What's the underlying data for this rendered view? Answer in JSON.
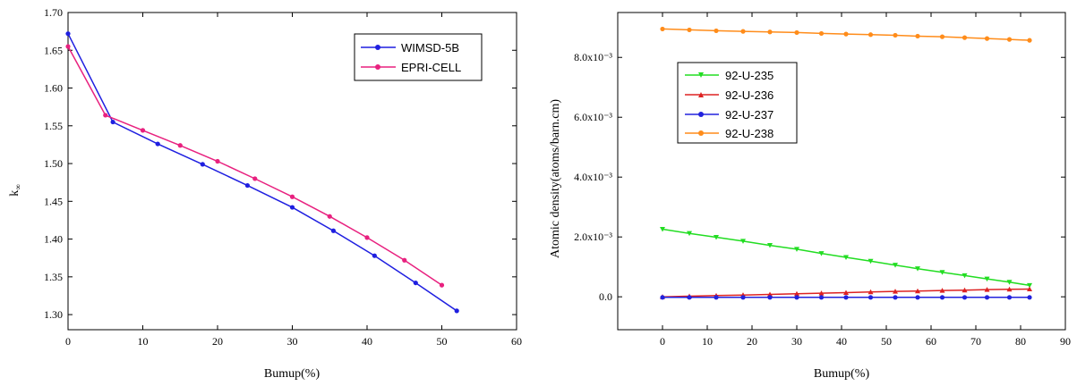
{
  "chart_data": [
    {
      "type": "line",
      "title": "",
      "xlabel": "Bumup(%)",
      "ylabel": "k",
      "ylabel_sub": "∞",
      "xlim": [
        0,
        60
      ],
      "ylim": [
        1.28,
        1.7
      ],
      "x_ticks": [
        "0",
        "10",
        "20",
        "30",
        "40",
        "50",
        "60"
      ],
      "y_ticks": [
        "1.30",
        "1.35",
        "1.40",
        "1.45",
        "1.50",
        "1.55",
        "1.60",
        "1.65",
        "1.70"
      ],
      "grid": false,
      "legend": "top-right",
      "series": [
        {
          "name": "WIMSD-5B",
          "color": "#1f1fe0",
          "marker": "circle",
          "x": [
            0,
            6,
            12,
            18,
            24,
            30,
            35.5,
            41,
            46.5,
            52
          ],
          "y": [
            1.672,
            1.555,
            1.526,
            1.499,
            1.471,
            1.442,
            1.411,
            1.378,
            1.342,
            1.305
          ]
        },
        {
          "name": "EPRI-CELL",
          "color": "#e8217f",
          "marker": "circle",
          "x": [
            0,
            5,
            10,
            15,
            20,
            25,
            30,
            35,
            40,
            45,
            50
          ],
          "y": [
            1.655,
            1.564,
            1.544,
            1.524,
            1.503,
            1.48,
            1.456,
            1.43,
            1.402,
            1.372,
            1.339
          ]
        }
      ]
    },
    {
      "type": "line",
      "title": "",
      "xlabel": "Bumup(%)",
      "ylabel": "Atomic density(atoms/barn.cm)",
      "xlim": [
        -10,
        90
      ],
      "ylim": [
        -0.0011,
        0.0095
      ],
      "x_ticks": [
        "0",
        "10",
        "20",
        "30",
        "40",
        "50",
        "60",
        "70",
        "80",
        "90"
      ],
      "y_ticks": [
        "0.0",
        "2.0x10⁻³",
        "4.0x10⁻³",
        "6.0x10⁻³",
        "8.0x10⁻³"
      ],
      "grid": false,
      "legend": "upper-left",
      "series": [
        {
          "name": "92-U-235",
          "color": "#22dd22",
          "marker": "triangle-down",
          "x": [
            0,
            6,
            12,
            18,
            24,
            30,
            35.5,
            41,
            46.5,
            52,
            57,
            62.5,
            67.5,
            72.5,
            77.5,
            82
          ],
          "y": [
            0.00226,
            0.00212,
            0.00199,
            0.00186,
            0.00172,
            0.00159,
            0.00145,
            0.00132,
            0.00119,
            0.00106,
            0.00094,
            0.00082,
            0.00071,
            0.0006,
            0.00049,
            0.00038
          ]
        },
        {
          "name": "92-U-236",
          "color": "#dd2222",
          "marker": "triangle-up",
          "x": [
            0,
            6,
            12,
            18,
            24,
            30,
            35.5,
            41,
            46.5,
            52,
            57,
            62.5,
            67.5,
            72.5,
            77.5,
            82
          ],
          "y": [
            0.0,
            2e-05,
            4e-05,
            6e-05,
            8e-05,
            0.0001,
            0.00012,
            0.00014,
            0.00016,
            0.00018,
            0.00019,
            0.00021,
            0.00022,
            0.00024,
            0.00025,
            0.00026
          ]
        },
        {
          "name": "92-U-237",
          "color": "#2222dd",
          "marker": "circle",
          "x": [
            0,
            6,
            12,
            18,
            24,
            30,
            35.5,
            41,
            46.5,
            52,
            57,
            62.5,
            67.5,
            72.5,
            77.5,
            82
          ],
          "y": [
            -2e-05,
            -2e-05,
            -2e-05,
            -2e-05,
            -2e-05,
            -2e-05,
            -2e-05,
            -2e-05,
            -2e-05,
            -2e-05,
            -2e-05,
            -2e-05,
            -2e-05,
            -2e-05,
            -2e-05,
            -2e-05
          ]
        },
        {
          "name": "92-U-238",
          "color": "#ff8c1a",
          "marker": "circle",
          "x": [
            0,
            6,
            12,
            18,
            24,
            30,
            35.5,
            41,
            46.5,
            52,
            57,
            62.5,
            67.5,
            72.5,
            77.5,
            82
          ],
          "y": [
            0.00895,
            0.00892,
            0.00889,
            0.00887,
            0.00885,
            0.00883,
            0.0088,
            0.00878,
            0.00876,
            0.00874,
            0.00871,
            0.00869,
            0.00866,
            0.00863,
            0.0086,
            0.00857
          ]
        }
      ]
    }
  ]
}
